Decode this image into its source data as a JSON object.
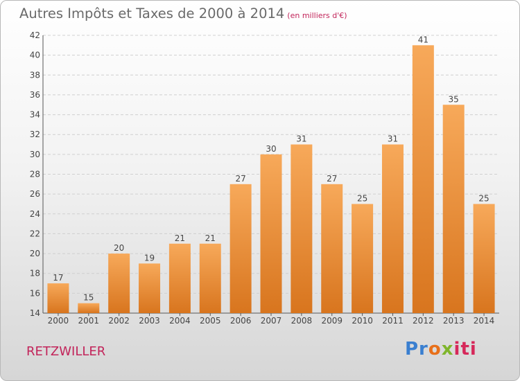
{
  "title": "Autres Impôts et Taxes de 2000 à 2014",
  "unit": "(en milliers d'€)",
  "commune": "RETZWILLER",
  "logo": {
    "p1": "Pr",
    "p2": "o",
    "p3": "x",
    "p4": "iti"
  },
  "colors": {
    "bar_top": "#f7a95a",
    "bar_bottom": "#d8751e",
    "title": "#6a6a6a",
    "accent": "#c2245a"
  },
  "chart_data": {
    "type": "bar",
    "title": "Autres Impôts et Taxes de 2000 à 2014",
    "subtitle": "(en milliers d'€)",
    "xlabel": "",
    "ylabel": "",
    "categories": [
      "2000",
      "2001",
      "2002",
      "2003",
      "2004",
      "2005",
      "2006",
      "2007",
      "2008",
      "2009",
      "2010",
      "2011",
      "2012",
      "2013",
      "2014"
    ],
    "values": [
      17,
      15,
      20,
      19,
      21,
      21,
      27,
      30,
      31,
      27,
      25,
      31,
      41,
      35,
      25
    ],
    "ylim": [
      14,
      42
    ],
    "yticks": [
      14,
      16,
      18,
      20,
      22,
      24,
      26,
      28,
      30,
      32,
      34,
      36,
      38,
      40,
      42
    ],
    "grid": true,
    "legend": "none"
  }
}
